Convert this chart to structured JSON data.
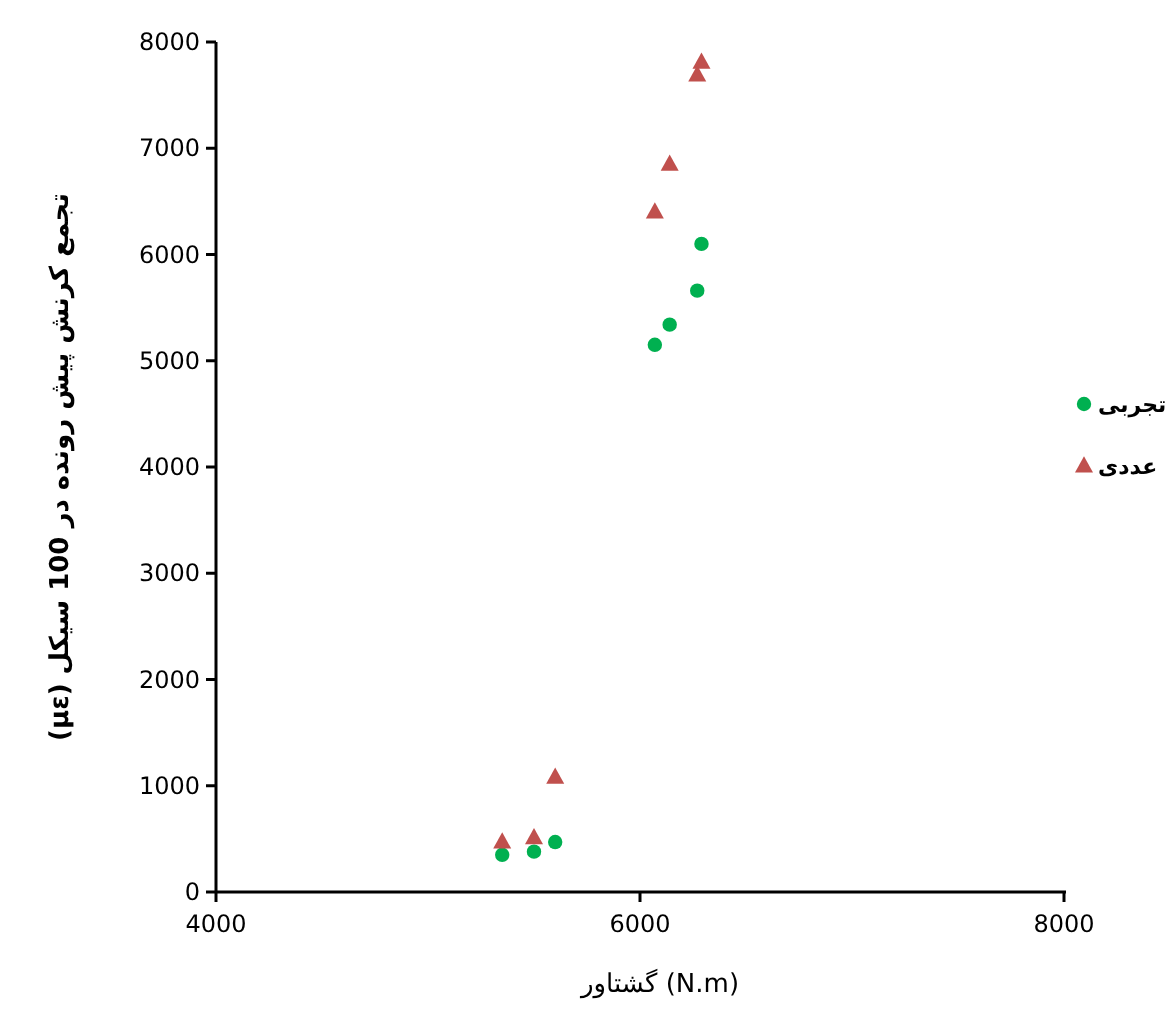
{
  "chart_data": {
    "type": "scatter",
    "xlabel": "گشتاور (N.m)",
    "ylabel": "تجمع کرنش پیش رونده در 100 سیکل (με)",
    "xlim": [
      4000,
      8000
    ],
    "xticks": [
      4000,
      6000,
      8000
    ],
    "ylim": [
      0,
      8000
    ],
    "yticks": [
      0,
      1000,
      2000,
      3000,
      4000,
      5000,
      6000,
      7000,
      8000
    ],
    "grid": false,
    "legend": "right",
    "series": [
      {
        "name": "تجربی",
        "color": "#00b050",
        "marker": "circle",
        "x": [
          5350,
          5500,
          5600,
          6070,
          6140,
          6270,
          6290
        ],
        "values": [
          350,
          380,
          470,
          5150,
          5340,
          5660,
          6100
        ]
      },
      {
        "name": "عددی",
        "color": "#c0504d",
        "marker": "triangle",
        "x": [
          5350,
          5500,
          5600,
          6070,
          6140,
          6270,
          6290
        ],
        "values": [
          470,
          510,
          1080,
          6400,
          6850,
          7690,
          7810
        ]
      }
    ]
  }
}
